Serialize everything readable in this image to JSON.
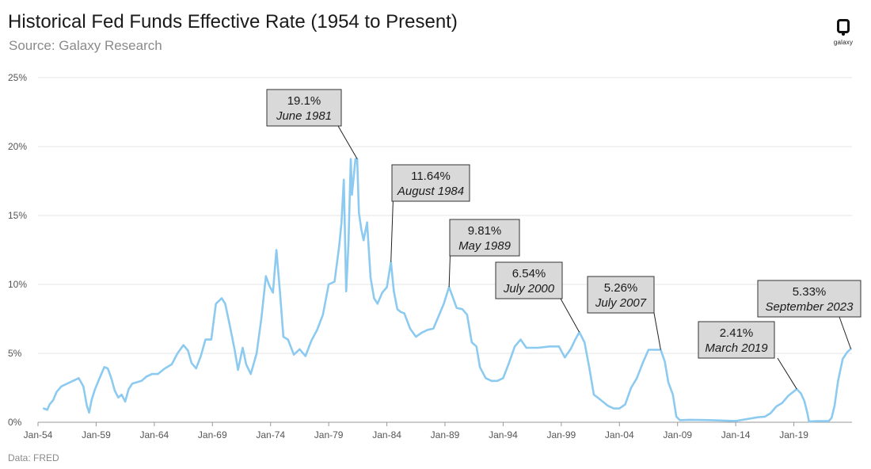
{
  "header": {
    "title": "Historical Fed Funds Effective Rate (1954 to Present)",
    "subtitle": "Source: Galaxy Research"
  },
  "logo": {
    "text": "galaxy",
    "icon": "galaxy-logo-icon"
  },
  "footer": {
    "source_note": "Data: FRED"
  },
  "colors": {
    "line": "#8ccaf0",
    "grid": "#e6e6e6",
    "axis": "#999999",
    "box_fill": "#d9d9d9",
    "box_border": "#333333"
  },
  "chart_data": {
    "type": "line",
    "title": "Historical Fed Funds Effective Rate (1954 to Present)",
    "xlabel": "",
    "ylabel": "",
    "ylim": [
      0,
      25
    ],
    "xlim": [
      1954.5,
      2023.9
    ],
    "y_ticks": [
      {
        "value": 0,
        "label": "0%"
      },
      {
        "value": 5,
        "label": "5%"
      },
      {
        "value": 10,
        "label": "10%"
      },
      {
        "value": 15,
        "label": "15%"
      },
      {
        "value": 20,
        "label": "20%"
      },
      {
        "value": 25,
        "label": "25%"
      }
    ],
    "x_ticks": [
      {
        "value": 1954.0,
        "label": "Jan-54"
      },
      {
        "value": 1959.0,
        "label": "Jan-59"
      },
      {
        "value": 1964.0,
        "label": "Jan-64"
      },
      {
        "value": 1969.0,
        "label": "Jan-69"
      },
      {
        "value": 1974.0,
        "label": "Jan-74"
      },
      {
        "value": 1979.0,
        "label": "Jan-79"
      },
      {
        "value": 1984.0,
        "label": "Jan-84"
      },
      {
        "value": 1989.0,
        "label": "Jan-89"
      },
      {
        "value": 1994.0,
        "label": "Jan-94"
      },
      {
        "value": 1999.0,
        "label": "Jan-99"
      },
      {
        "value": 2004.0,
        "label": "Jan-04"
      },
      {
        "value": 2009.0,
        "label": "Jan-09"
      },
      {
        "value": 2014.0,
        "label": "Jan-14"
      },
      {
        "value": 2019.0,
        "label": "Jan-19"
      }
    ],
    "grid": true,
    "series": [
      {
        "name": "Fed Funds Effective Rate",
        "x": [
          1954.5,
          1954.8,
          1955.0,
          1955.3,
          1955.6,
          1956.0,
          1956.5,
          1957.0,
          1957.5,
          1957.9,
          1958.2,
          1958.4,
          1958.6,
          1958.9,
          1959.3,
          1959.7,
          1960.0,
          1960.3,
          1960.6,
          1960.9,
          1961.2,
          1961.5,
          1961.8,
          1962.1,
          1962.5,
          1962.9,
          1963.3,
          1963.8,
          1964.3,
          1964.9,
          1965.5,
          1966.0,
          1966.5,
          1966.9,
          1967.2,
          1967.6,
          1968.0,
          1968.4,
          1968.9,
          1969.3,
          1969.8,
          1970.1,
          1970.5,
          1970.9,
          1971.2,
          1971.6,
          1971.9,
          1972.3,
          1972.8,
          1973.2,
          1973.6,
          1973.9,
          1974.2,
          1974.5,
          1974.8,
          1975.1,
          1975.5,
          1976.0,
          1976.5,
          1977.0,
          1977.5,
          1978.0,
          1978.5,
          1979.0,
          1979.5,
          1979.9,
          1980.1,
          1980.3,
          1980.5,
          1980.7,
          1980.9,
          1981.0,
          1981.3,
          1981.45,
          1981.6,
          1981.8,
          1982.0,
          1982.3,
          1982.6,
          1982.9,
          1983.2,
          1983.6,
          1984.0,
          1984.35,
          1984.6,
          1984.9,
          1985.2,
          1985.5,
          1986.0,
          1986.5,
          1987.0,
          1987.5,
          1988.0,
          1988.5,
          1988.9,
          1989.35,
          1989.7,
          1990.0,
          1990.5,
          1990.9,
          1991.3,
          1991.7,
          1992.0,
          1992.5,
          1993.0,
          1993.5,
          1994.0,
          1994.5,
          1995.0,
          1995.5,
          1996.0,
          1997.0,
          1998.0,
          1998.8,
          1999.3,
          1999.8,
          2000.2,
          2000.55,
          2001.0,
          2001.4,
          2001.8,
          2002.2,
          2003.0,
          2003.5,
          2004.0,
          2004.5,
          2005.0,
          2005.5,
          2006.0,
          2006.5,
          2007.55,
          2007.9,
          2008.2,
          2008.6,
          2008.9,
          2009.2,
          2010.0,
          2012.0,
          2014.0,
          2015.9,
          2016.5,
          2017.0,
          2017.5,
          2018.0,
          2018.5,
          2019.25,
          2019.6,
          2019.9,
          2020.15,
          2020.3,
          2021.0,
          2022.0,
          2022.25,
          2022.5,
          2022.8,
          2023.2,
          2023.6,
          2023.9
        ],
        "y": [
          1.0,
          0.9,
          1.3,
          1.6,
          2.2,
          2.6,
          2.8,
          3.0,
          3.2,
          2.6,
          1.2,
          0.7,
          1.6,
          2.4,
          3.2,
          4.0,
          3.9,
          3.2,
          2.3,
          1.8,
          2.0,
          1.5,
          2.4,
          2.8,
          2.9,
          3.0,
          3.3,
          3.5,
          3.5,
          3.9,
          4.2,
          5.0,
          5.6,
          5.2,
          4.3,
          3.9,
          4.8,
          6.0,
          6.0,
          8.6,
          9.0,
          8.6,
          7.0,
          5.3,
          3.8,
          5.4,
          4.2,
          3.5,
          5.0,
          7.5,
          10.6,
          9.9,
          9.4,
          12.5,
          9.5,
          6.2,
          6.0,
          4.9,
          5.3,
          4.8,
          5.9,
          6.7,
          7.8,
          10.0,
          10.2,
          12.8,
          14.5,
          17.6,
          9.5,
          13.0,
          19.1,
          16.5,
          19.1,
          19.1,
          15.2,
          14.0,
          13.2,
          14.5,
          10.5,
          9.0,
          8.6,
          9.4,
          9.8,
          11.64,
          9.5,
          8.2,
          8.0,
          7.9,
          6.8,
          6.2,
          6.5,
          6.7,
          6.8,
          7.8,
          8.6,
          9.81,
          9.0,
          8.3,
          8.2,
          7.8,
          5.8,
          5.5,
          4.0,
          3.2,
          3.0,
          3.0,
          3.2,
          4.3,
          5.5,
          6.0,
          5.4,
          5.4,
          5.5,
          5.5,
          4.7,
          5.3,
          6.0,
          6.54,
          5.8,
          4.0,
          2.0,
          1.75,
          1.2,
          1.0,
          1.0,
          1.3,
          2.5,
          3.2,
          4.3,
          5.26,
          5.26,
          4.4,
          2.9,
          2.0,
          0.4,
          0.15,
          0.18,
          0.15,
          0.09,
          0.36,
          0.4,
          0.66,
          1.15,
          1.4,
          1.9,
          2.41,
          2.1,
          1.55,
          0.7,
          0.05,
          0.08,
          0.08,
          0.33,
          1.2,
          3.0,
          4.6,
          5.1,
          5.33
        ]
      }
    ],
    "annotations": [
      {
        "value_label": "19.1%",
        "date_label": "June 1981",
        "x": 1981.45,
        "y": 19.1
      },
      {
        "value_label": "11.64%",
        "date_label": "August 1984",
        "x": 1984.35,
        "y": 11.64
      },
      {
        "value_label": "9.81%",
        "date_label": "May 1989",
        "x": 1989.35,
        "y": 9.81
      },
      {
        "value_label": "6.54%",
        "date_label": "July 2000",
        "x": 2000.55,
        "y": 6.54
      },
      {
        "value_label": "5.26%",
        "date_label": "July 2007",
        "x": 2007.55,
        "y": 5.26
      },
      {
        "value_label": "2.41%",
        "date_label": "March 2019",
        "x": 2019.25,
        "y": 2.41
      },
      {
        "value_label": "5.33%",
        "date_label": "September 2023",
        "x": 2023.9,
        "y": 5.33
      }
    ]
  }
}
